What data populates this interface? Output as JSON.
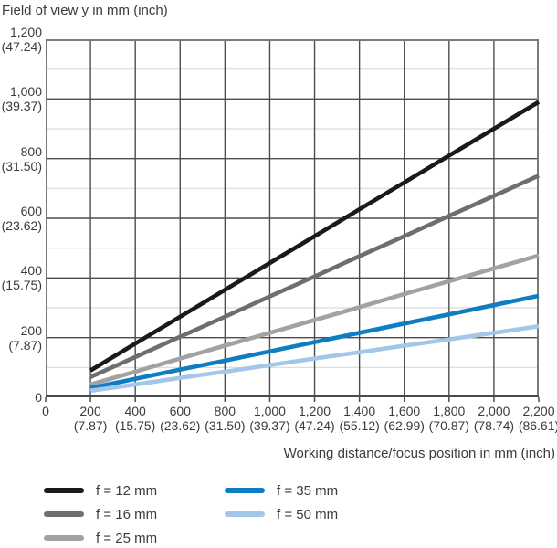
{
  "chart_data": {
    "type": "line",
    "title": "Field of view y in mm (inch)",
    "xlabel": "Working distance/focus position in mm (inch)",
    "ylabel": "Field of view y in mm (inch)",
    "xlim": [
      0,
      2200
    ],
    "ylim": [
      0,
      1200
    ],
    "x_major_step": 200,
    "y_major_step": 200,
    "y_minor_step": 100,
    "grid": true,
    "legend_position": "bottom",
    "x": [
      200,
      400,
      600,
      800,
      1000,
      1200,
      1400,
      1600,
      1800,
      2000,
      2200
    ],
    "series": [
      {
        "name": "f = 12 mm",
        "color": "#1a1a1a",
        "values": [
          90,
          180,
          270,
          360,
          450,
          540,
          630,
          720,
          810,
          900,
          990
        ]
      },
      {
        "name": "f = 16 mm",
        "color": "#6e6e6e",
        "values": [
          68,
          135,
          203,
          270,
          338,
          405,
          473,
          540,
          608,
          675,
          743
        ]
      },
      {
        "name": "f = 25 mm",
        "color": "#a2a2a2",
        "values": [
          43,
          86,
          130,
          173,
          216,
          259,
          302,
          346,
          389,
          432,
          475
        ]
      },
      {
        "name": "f = 35 mm",
        "color": "#0f7dc2",
        "values": [
          31,
          62,
          93,
          123,
          154,
          185,
          216,
          247,
          278,
          309,
          340
        ]
      },
      {
        "name": "f = 50 mm",
        "color": "#a3c7e9",
        "values": [
          22,
          43,
          65,
          86,
          108,
          130,
          151,
          173,
          194,
          216,
          238
        ]
      }
    ],
    "x_ticks": [
      {
        "value": 0,
        "label": "0",
        "sub": ""
      },
      {
        "value": 200,
        "label": "200",
        "sub": "(7.87)"
      },
      {
        "value": 400,
        "label": "400",
        "sub": "(15.75)"
      },
      {
        "value": 600,
        "label": "600",
        "sub": "(23.62)"
      },
      {
        "value": 800,
        "label": "800",
        "sub": "(31.50)"
      },
      {
        "value": 1000,
        "label": "1,000",
        "sub": "(39.37)"
      },
      {
        "value": 1200,
        "label": "1,200",
        "sub": "(47.24)"
      },
      {
        "value": 1400,
        "label": "1,400",
        "sub": "(55.12)"
      },
      {
        "value": 1600,
        "label": "1,600",
        "sub": "(62.99)"
      },
      {
        "value": 1800,
        "label": "1,800",
        "sub": "(70.87)"
      },
      {
        "value": 2000,
        "label": "2,000",
        "sub": "(78.74)"
      },
      {
        "value": 2200,
        "label": "2,200",
        "sub": "(86.61)"
      }
    ],
    "y_ticks": [
      {
        "value": 0,
        "label": "0",
        "sub": ""
      },
      {
        "value": 200,
        "label": "200",
        "sub": "(7.87)"
      },
      {
        "value": 400,
        "label": "400",
        "sub": "(15.75)"
      },
      {
        "value": 600,
        "label": "600",
        "sub": "(23.62)"
      },
      {
        "value": 800,
        "label": "800",
        "sub": "(31.50)"
      },
      {
        "value": 1000,
        "label": "1,000",
        "sub": "(39.37)"
      },
      {
        "value": 1200,
        "label": "1,200",
        "sub": "(47.24)"
      }
    ],
    "colors": {
      "major_grid": "#4d4d4d",
      "minor_grid": "#d9d9d9",
      "border": "#7a7a7a",
      "bottom_axis": "#4a4a4a",
      "tick": "#4a4a4a",
      "text": "#3b3b3b"
    }
  }
}
